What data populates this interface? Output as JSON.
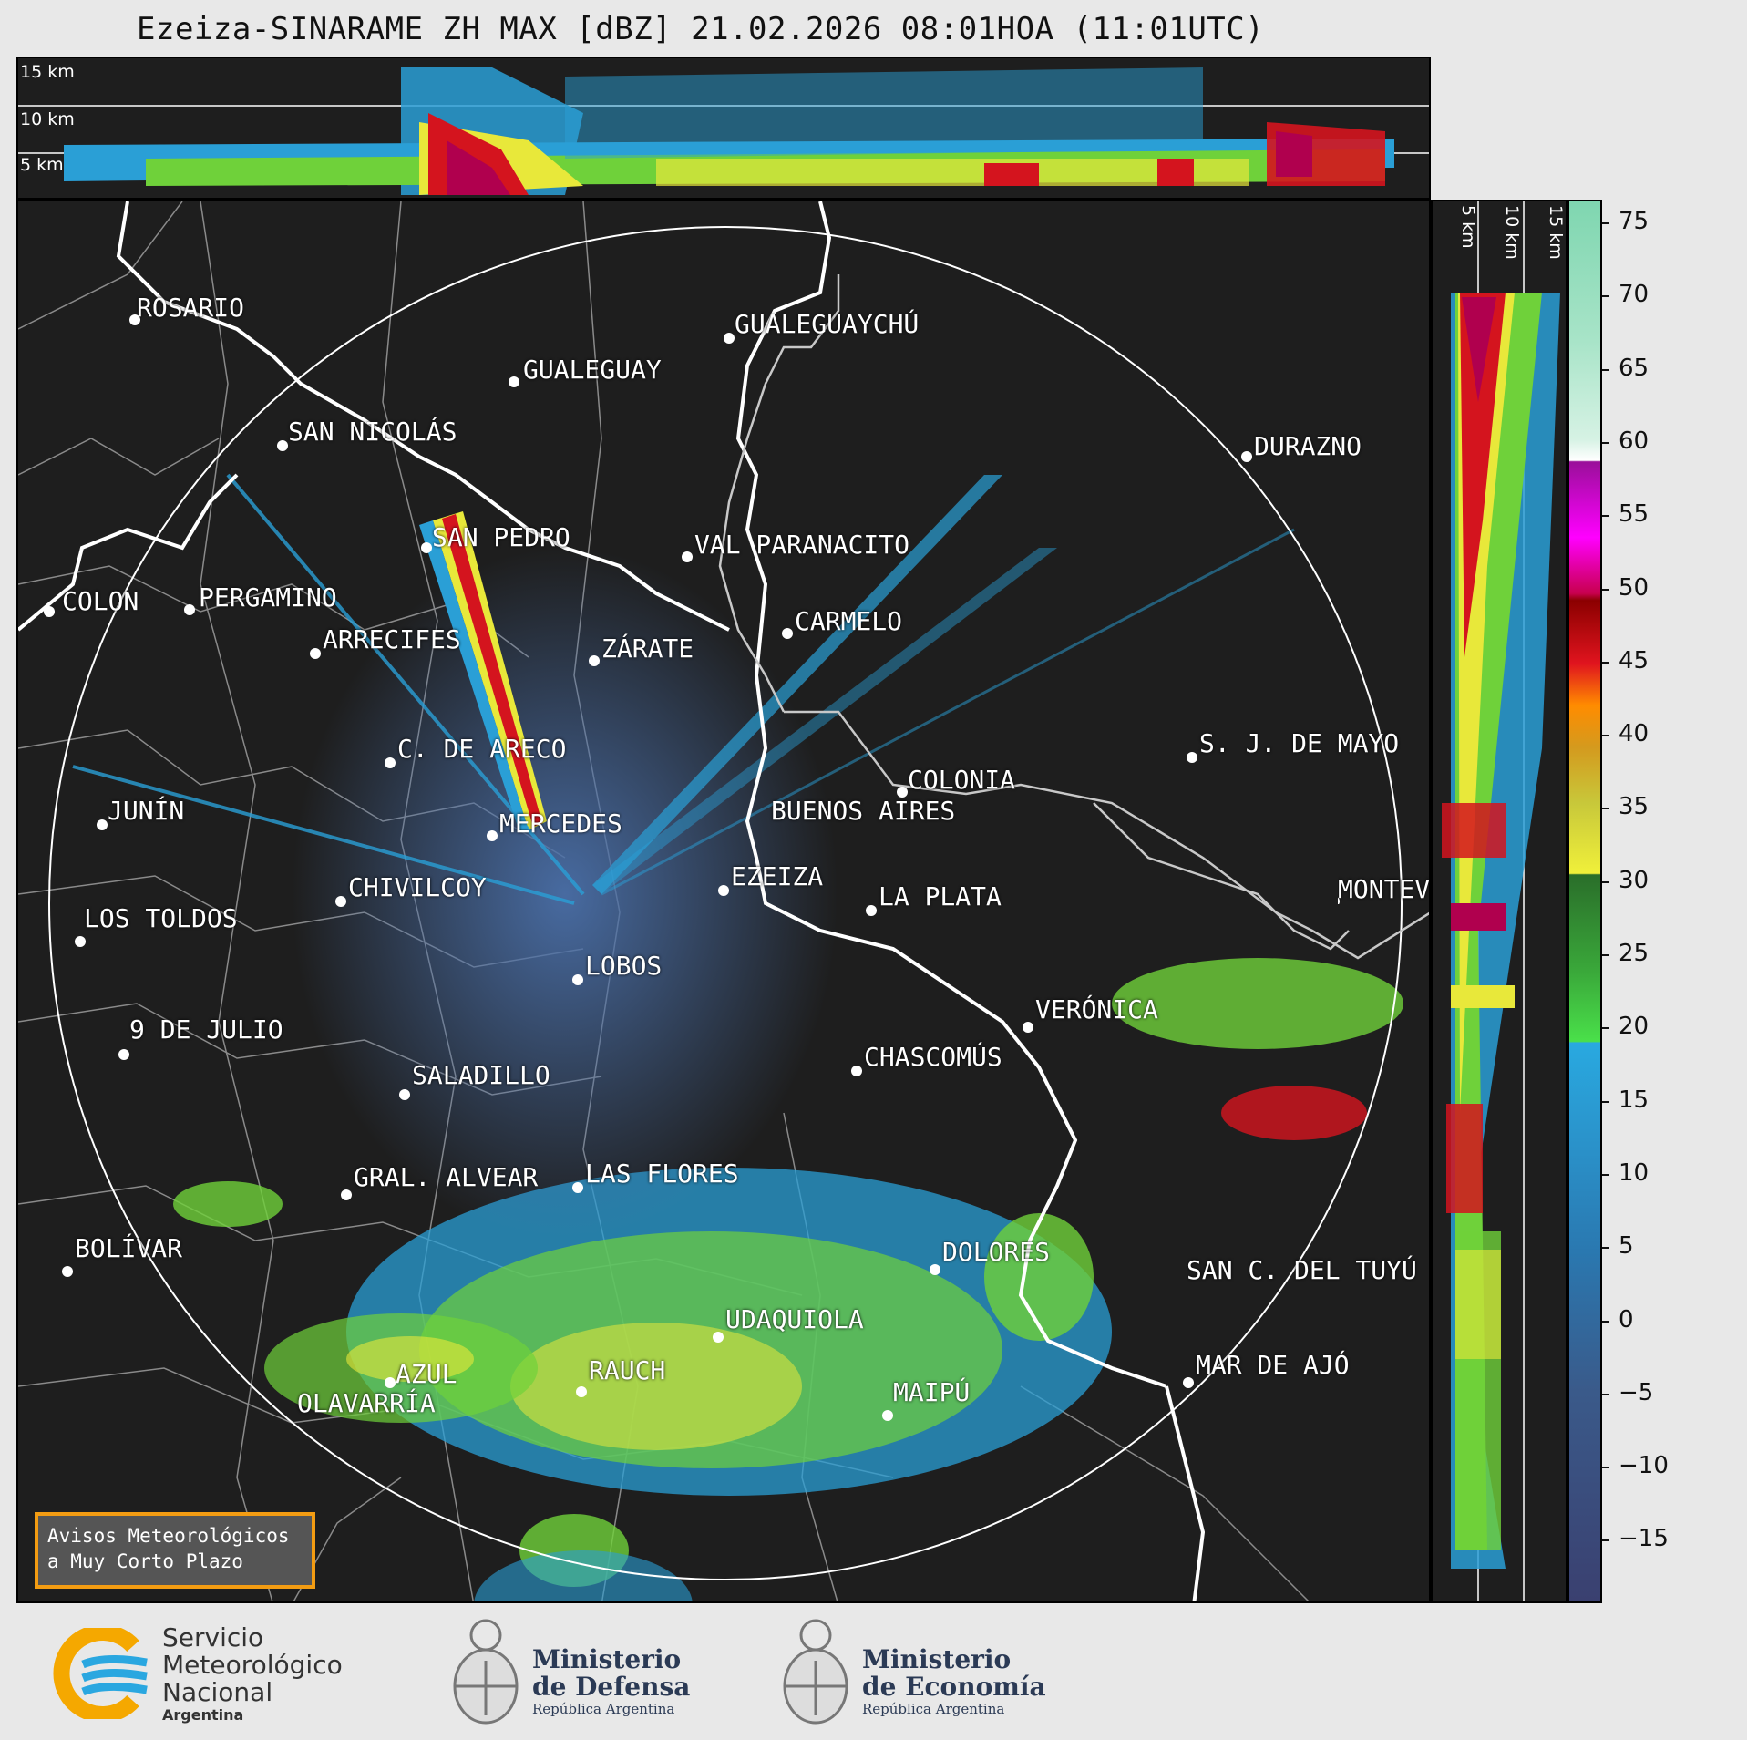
{
  "title": "Ezeiza-SINARAME ZH MAX [dBZ] 21.02.2026 08:01HOA (11:01UTC)",
  "altitude_labels": {
    "h15": "15 km",
    "h10": "10 km",
    "h5": "5 km"
  },
  "cities": [
    {
      "name": "ROSARIO"
    },
    {
      "name": "GUALEGUAYCHÚ"
    },
    {
      "name": "GUALEGUAY"
    },
    {
      "name": "SAN NICOLÁS"
    },
    {
      "name": "DURAZNO"
    },
    {
      "name": "SAN PEDRO"
    },
    {
      "name": "VAL PARANACITO"
    },
    {
      "name": "COLON"
    },
    {
      "name": "PERGAMINO"
    },
    {
      "name": "CARMELO"
    },
    {
      "name": "ARRECIFES"
    },
    {
      "name": "ZÁRATE"
    },
    {
      "name": "S. J. DE MAYO"
    },
    {
      "name": "C. DE ARECO"
    },
    {
      "name": "COLONIA"
    },
    {
      "name": "JUNÍN"
    },
    {
      "name": "BUENOS AIRES"
    },
    {
      "name": "MERCEDES"
    },
    {
      "name": "MONTEVIDEO"
    },
    {
      "name": "EZEIZA"
    },
    {
      "name": "CHIVILCOY"
    },
    {
      "name": "LA PLATA"
    },
    {
      "name": "LOS TOLDOS"
    },
    {
      "name": "LOBOS"
    },
    {
      "name": "VERÓNICA"
    },
    {
      "name": "9 DE JULIO"
    },
    {
      "name": "CHASCOMÚS"
    },
    {
      "name": "SALADILLO"
    },
    {
      "name": "GRAL. ALVEAR"
    },
    {
      "name": "LAS FLORES"
    },
    {
      "name": "BOLÍVAR"
    },
    {
      "name": "DOLORES"
    },
    {
      "name": "SAN C. DEL TUYÚ"
    },
    {
      "name": "UDAQUIOLA"
    },
    {
      "name": "MAR DE AJÓ"
    },
    {
      "name": "RAUCH"
    },
    {
      "name": "AZUL"
    },
    {
      "name": "OLAVARRÍA"
    },
    {
      "name": "MAIPÚ"
    }
  ],
  "colorbar": {
    "unit": "dBZ",
    "ticks": [
      "75",
      "70",
      "65",
      "60",
      "55",
      "50",
      "45",
      "40",
      "35",
      "30",
      "25",
      "20",
      "15",
      "10",
      "5",
      "0",
      "−5",
      "−10",
      "−15"
    ]
  },
  "notice": {
    "line1": "Avisos Meteorológicos",
    "line2": "a Muy Corto Plazo"
  },
  "footer": {
    "smn": {
      "l1": "Servicio",
      "l2": "Meteorológico",
      "l3": "Nacional",
      "l4": "Argentina"
    },
    "defensa": {
      "l1": "Ministerio",
      "l2": "de Defensa",
      "l3": "República Argentina"
    },
    "economia": {
      "l1": "Ministerio",
      "l2": "de Economía",
      "l3": "República Argentina"
    }
  },
  "colors": {
    "background": "#1e1e1e",
    "coast": "#ffffff",
    "borders": "#8a8a8a",
    "notice_border": "#f39c12"
  }
}
